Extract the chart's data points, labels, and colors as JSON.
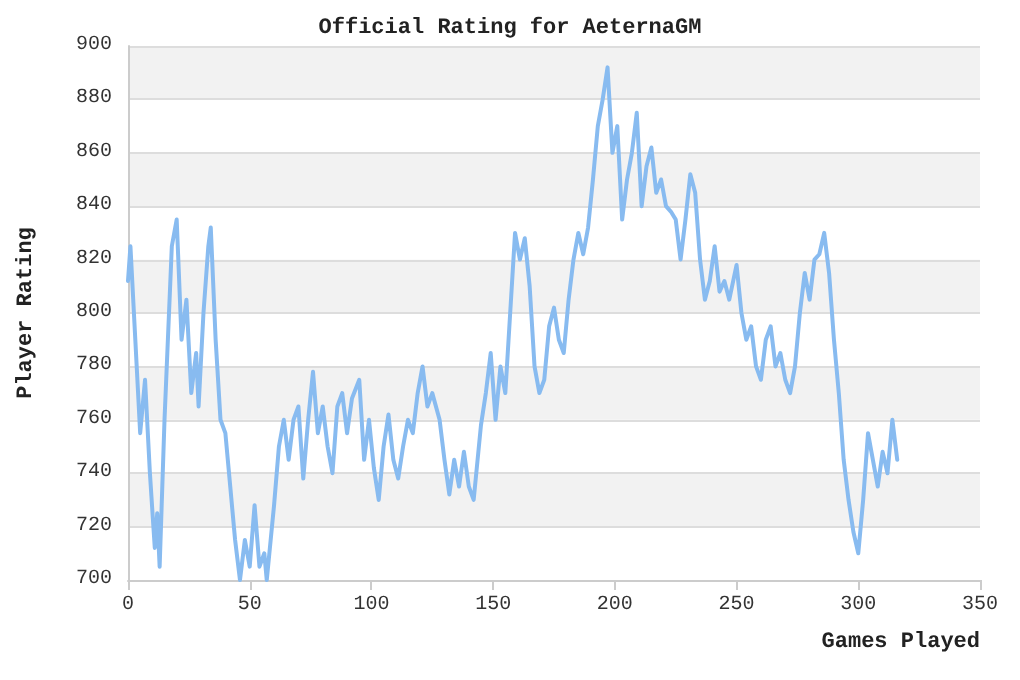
{
  "chart_data": {
    "type": "line",
    "title": "Official Rating for AeternaGM",
    "xlabel": "Games Played",
    "ylabel": "Player Rating",
    "xlim": [
      0,
      350
    ],
    "xticks": [
      0,
      50,
      100,
      150,
      200,
      250,
      300,
      350
    ],
    "ylim": [
      700,
      900
    ],
    "yticks": [
      700,
      720,
      740,
      760,
      780,
      800,
      820,
      840,
      860,
      880,
      900
    ],
    "grid": "y",
    "marker": "none",
    "line_style": "solid",
    "series": [
      {
        "color": "#88bbf0",
        "x": [
          0,
          1,
          3,
          5,
          7,
          9,
          11,
          12,
          13,
          15,
          18,
          20,
          22,
          24,
          26,
          28,
          29,
          31,
          33,
          34,
          36,
          38,
          40,
          42,
          44,
          46,
          48,
          50,
          52,
          54,
          56,
          57,
          60,
          62,
          64,
          66,
          68,
          70,
          72,
          74,
          76,
          78,
          80,
          82,
          84,
          86,
          88,
          90,
          92,
          95,
          97,
          99,
          101,
          103,
          105,
          107,
          109,
          111,
          113,
          115,
          117,
          119,
          121,
          123,
          125,
          128,
          130,
          132,
          134,
          136,
          138,
          140,
          142,
          145,
          147,
          149,
          151,
          153,
          155,
          157,
          159,
          161,
          163,
          165,
          167,
          169,
          171,
          173,
          175,
          177,
          179,
          181,
          183,
          185,
          187,
          189,
          191,
          193,
          195,
          197,
          199,
          201,
          203,
          205,
          207,
          209,
          211,
          213,
          215,
          217,
          219,
          221,
          223,
          225,
          227,
          229,
          231,
          233,
          235,
          237,
          239,
          241,
          243,
          245,
          247,
          250,
          252,
          254,
          256,
          258,
          260,
          262,
          264,
          266,
          268,
          270,
          272,
          274,
          276,
          278,
          280,
          282,
          284,
          286,
          288,
          290,
          292,
          294,
          296,
          298,
          300,
          302,
          304,
          306,
          308,
          310,
          312,
          314,
          316
        ],
        "values": [
          812,
          825,
          790,
          755,
          775,
          740,
          712,
          725,
          705,
          760,
          825,
          835,
          790,
          805,
          770,
          785,
          765,
          800,
          825,
          832,
          790,
          760,
          755,
          735,
          715,
          700,
          715,
          705,
          728,
          705,
          710,
          700,
          728,
          750,
          760,
          745,
          760,
          765,
          738,
          760,
          778,
          755,
          765,
          750,
          740,
          765,
          770,
          755,
          768,
          775,
          745,
          760,
          742,
          730,
          750,
          762,
          745,
          738,
          750,
          760,
          755,
          770,
          780,
          765,
          770,
          760,
          745,
          732,
          745,
          735,
          748,
          735,
          730,
          758,
          770,
          785,
          760,
          780,
          770,
          800,
          830,
          820,
          828,
          810,
          780,
          770,
          775,
          795,
          802,
          790,
          785,
          805,
          820,
          830,
          822,
          832,
          850,
          870,
          880,
          892,
          860,
          870,
          835,
          850,
          860,
          875,
          840,
          855,
          862,
          845,
          850,
          840,
          838,
          835,
          820,
          835,
          852,
          845,
          820,
          805,
          812,
          825,
          808,
          812,
          805,
          818,
          800,
          790,
          795,
          780,
          775,
          790,
          795,
          780,
          785,
          775,
          770,
          780,
          800,
          815,
          805,
          820,
          822,
          830,
          815,
          790,
          770,
          745,
          730,
          718,
          710,
          730,
          755,
          745,
          735,
          748,
          740,
          760,
          745
        ]
      }
    ]
  }
}
